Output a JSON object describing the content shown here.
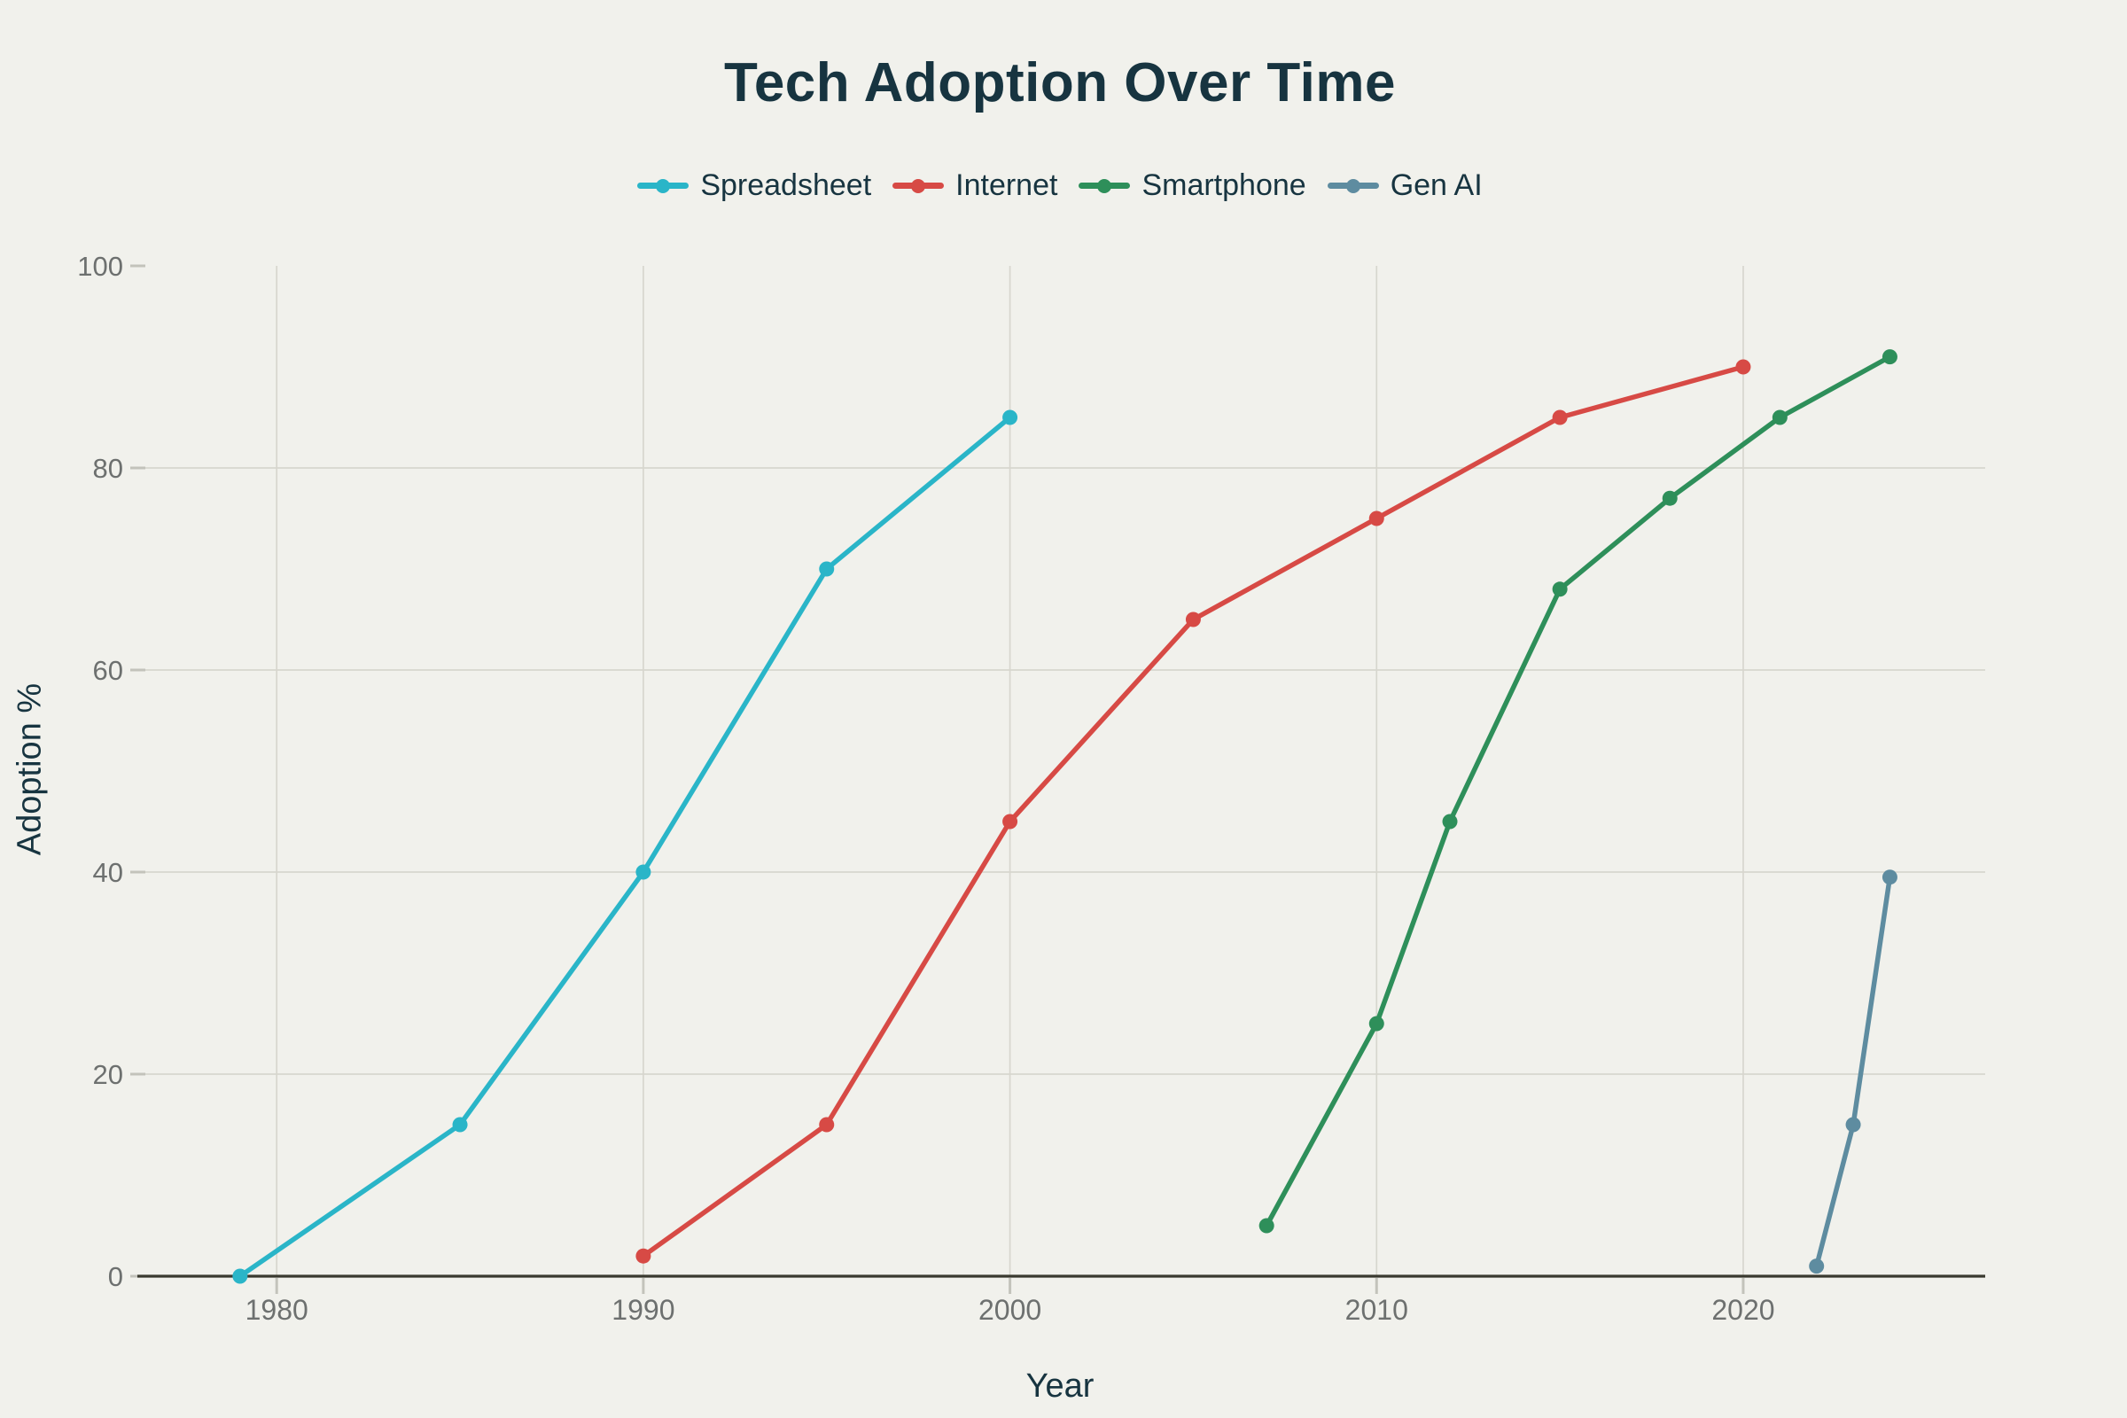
{
  "title": "Tech Adoption Over Time",
  "colors": {
    "background": "#f1f1ec",
    "heading_text": "#173440",
    "tick_text": "#6d706f",
    "gridline": "#d7d6ce",
    "tick_mark": "#c3c3bb",
    "axis_line": "#39392f",
    "spreadsheet": "#2ab5c8",
    "internet": "#d74a45",
    "smartphone": "#2e8f5a",
    "gen_ai": "#5e8ca0"
  },
  "chart_data": {
    "type": "line",
    "title": "Tech Adoption Over Time",
    "xlabel": "Year",
    "ylabel": "Adoption %",
    "x_ticks": [
      1980,
      1990,
      2000,
      2010,
      2020
    ],
    "y_ticks": [
      0,
      20,
      40,
      60,
      80,
      100
    ],
    "xlim": [
      1976.2,
      2026.6
    ],
    "ylim": [
      0,
      100
    ],
    "grid": true,
    "legend_position": "top-center",
    "marker": "circle",
    "series": [
      {
        "name": "Spreadsheet",
        "color": "#2ab5c8",
        "points": [
          [
            1979,
            0
          ],
          [
            1985,
            15
          ],
          [
            1990,
            40
          ],
          [
            1995,
            70
          ],
          [
            2000,
            85
          ]
        ]
      },
      {
        "name": "Internet",
        "color": "#d74a45",
        "points": [
          [
            1990,
            2
          ],
          [
            1995,
            15
          ],
          [
            2000,
            45
          ],
          [
            2005,
            65
          ],
          [
            2010,
            75
          ],
          [
            2015,
            85
          ],
          [
            2020,
            90
          ]
        ]
      },
      {
        "name": "Smartphone",
        "color": "#2e8f5a",
        "points": [
          [
            2007,
            5
          ],
          [
            2010,
            25
          ],
          [
            2012,
            45
          ],
          [
            2015,
            68
          ],
          [
            2018,
            77
          ],
          [
            2021,
            85
          ],
          [
            2024,
            91
          ]
        ]
      },
      {
        "name": "Gen AI",
        "color": "#5e8ca0",
        "points": [
          [
            2022,
            1
          ],
          [
            2023,
            15
          ],
          [
            2024,
            39.5
          ]
        ]
      }
    ]
  }
}
